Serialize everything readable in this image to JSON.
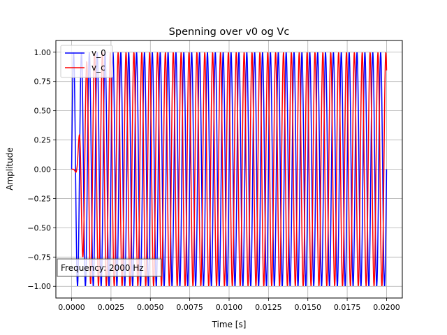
{
  "chart_data": {
    "type": "line",
    "title": "Spenning over v0 og Vc",
    "xlabel": "Time [s]",
    "ylabel": "Amplitude",
    "xlim": [
      -0.001,
      0.021
    ],
    "ylim": [
      -1.1,
      1.1
    ],
    "xticks": [
      0.0,
      0.0025,
      0.005,
      0.0075,
      0.01,
      0.0125,
      0.015,
      0.0175,
      0.02
    ],
    "xtick_labels": [
      "0.0000",
      "0.0025",
      "0.0050",
      "0.0075",
      "0.0100",
      "0.0125",
      "0.0150",
      "0.0175",
      "0.0200"
    ],
    "yticks": [
      -1.0,
      -0.75,
      -0.5,
      -0.25,
      0.0,
      0.25,
      0.5,
      0.75,
      1.0
    ],
    "ytick_labels": [
      "−1.00",
      "−0.75",
      "−0.50",
      "−0.25",
      "0.00",
      "0.25",
      "0.50",
      "0.75",
      "1.00"
    ],
    "grid": true,
    "legend_position": "top-left",
    "annotation": "Frequency: 2000 Hz",
    "series": [
      {
        "name": "v_0",
        "color": "#0000ff",
        "description": "sin(2*pi*f*t), f = 2000 Hz sampled from t=0 to t=0.02",
        "x_range": [
          0.0,
          0.02
        ],
        "frequency_hz": 2000,
        "amplitude": 1.0,
        "phase_delay_s": 0.0
      },
      {
        "name": "v_c",
        "color": "#ff0000",
        "x_range": [
          0.0,
          0.02
        ],
        "frequency_hz": 2000,
        "amplitude": 1.0,
        "phase_delay_s": 0.00083
      }
    ]
  }
}
